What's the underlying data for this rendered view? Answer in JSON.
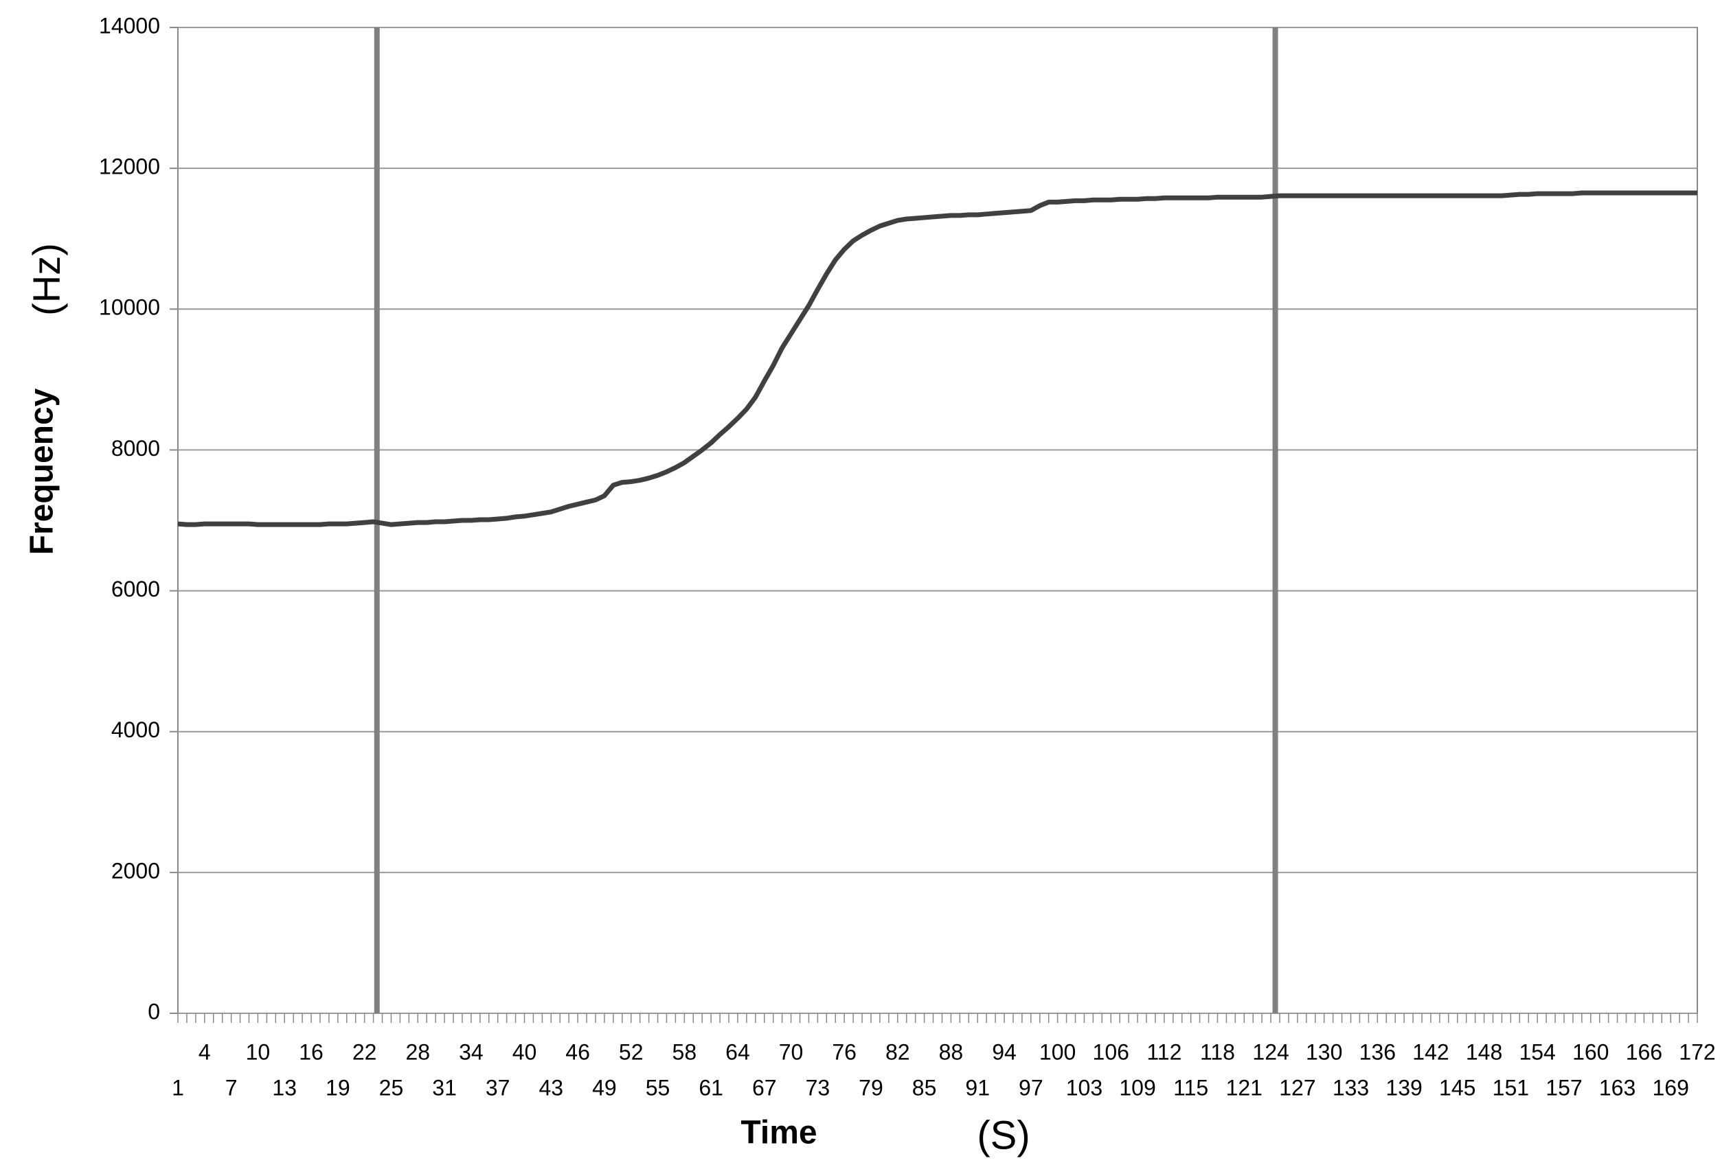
{
  "chart_data": {
    "type": "line",
    "y_label": "Frequency",
    "y_unit": "(Hz)",
    "x_label": "Time",
    "x_unit": "(S)",
    "x": [
      1,
      2,
      3,
      4,
      5,
      6,
      7,
      8,
      9,
      10,
      11,
      12,
      13,
      14,
      15,
      16,
      17,
      18,
      19,
      20,
      21,
      22,
      23,
      24,
      25,
      26,
      27,
      28,
      29,
      30,
      31,
      32,
      33,
      34,
      35,
      36,
      37,
      38,
      39,
      40,
      41,
      42,
      43,
      44,
      45,
      46,
      47,
      48,
      49,
      50,
      51,
      52,
      53,
      54,
      55,
      56,
      57,
      58,
      59,
      60,
      61,
      62,
      63,
      64,
      65,
      66,
      67,
      68,
      69,
      70,
      71,
      72,
      73,
      74,
      75,
      76,
      77,
      78,
      79,
      80,
      81,
      82,
      83,
      84,
      85,
      86,
      87,
      88,
      89,
      90,
      91,
      92,
      93,
      94,
      95,
      96,
      97,
      98,
      99,
      100,
      101,
      102,
      103,
      104,
      105,
      106,
      107,
      108,
      109,
      110,
      111,
      112,
      113,
      114,
      115,
      116,
      117,
      118,
      119,
      120,
      121,
      122,
      123,
      124,
      125,
      126,
      127,
      128,
      129,
      130,
      131,
      132,
      133,
      134,
      135,
      136,
      137,
      138,
      139,
      140,
      141,
      142,
      143,
      144,
      145,
      146,
      147,
      148,
      149,
      150,
      151,
      152,
      153,
      154,
      155,
      156,
      157,
      158,
      159,
      160,
      161,
      162,
      163,
      164,
      165,
      166,
      167,
      168,
      169,
      170,
      171,
      172
    ],
    "series": [
      {
        "name": "Frequency",
        "color": "#404040",
        "values": [
          6950,
          6940,
          6940,
          6950,
          6950,
          6950,
          6950,
          6950,
          6950,
          6940,
          6940,
          6940,
          6940,
          6940,
          6940,
          6940,
          6940,
          6950,
          6950,
          6950,
          6960,
          6970,
          6980,
          6960,
          6940,
          6950,
          6960,
          6970,
          6970,
          6980,
          6980,
          6990,
          7000,
          7000,
          7010,
          7010,
          7020,
          7030,
          7050,
          7060,
          7080,
          7100,
          7120,
          7160,
          7200,
          7230,
          7260,
          7290,
          7350,
          7500,
          7540,
          7550,
          7570,
          7600,
          7640,
          7690,
          7750,
          7820,
          7910,
          8000,
          8100,
          8220,
          8330,
          8450,
          8580,
          8750,
          8980,
          9200,
          9450,
          9650,
          9850,
          10050,
          10280,
          10500,
          10700,
          10850,
          10970,
          11050,
          11120,
          11180,
          11220,
          11260,
          11280,
          11290,
          11300,
          11310,
          11320,
          11330,
          11330,
          11340,
          11340,
          11350,
          11360,
          11370,
          11380,
          11390,
          11400,
          11470,
          11520,
          11520,
          11530,
          11540,
          11540,
          11550,
          11550,
          11550,
          11560,
          11560,
          11560,
          11570,
          11570,
          11580,
          11580,
          11580,
          11580,
          11580,
          11580,
          11590,
          11590,
          11590,
          11590,
          11590,
          11590,
          11600,
          11610,
          11610,
          11610,
          11610,
          11610,
          11610,
          11610,
          11610,
          11610,
          11610,
          11610,
          11610,
          11610,
          11610,
          11610,
          11610,
          11610,
          11610,
          11610,
          11610,
          11610,
          11610,
          11610,
          11610,
          11610,
          11610,
          11620,
          11630,
          11630,
          11640,
          11640,
          11640,
          11640,
          11640,
          11650,
          11650,
          11650,
          11650,
          11650,
          11650,
          11650,
          11650,
          11650,
          11650,
          11650,
          11650,
          11650,
          11650
        ]
      }
    ],
    "vlines": [
      23.4,
      124.5
    ],
    "vline_color": "#808080",
    "xlim": [
      1,
      172
    ],
    "xticks": [
      1,
      4,
      7,
      10,
      13,
      16,
      19,
      22,
      25,
      28,
      31,
      34,
      37,
      40,
      43,
      46,
      49,
      52,
      55,
      58,
      61,
      64,
      67,
      70,
      73,
      76,
      79,
      82,
      85,
      88,
      91,
      94,
      97,
      100,
      103,
      106,
      109,
      112,
      115,
      118,
      121,
      124,
      127,
      130,
      133,
      136,
      139,
      142,
      145,
      148,
      151,
      154,
      157,
      160,
      163,
      166,
      169,
      172
    ],
    "ylim": [
      0,
      14000
    ],
    "yticks": [
      0,
      2000,
      4000,
      6000,
      8000,
      10000,
      12000,
      14000
    ],
    "grid": true
  }
}
